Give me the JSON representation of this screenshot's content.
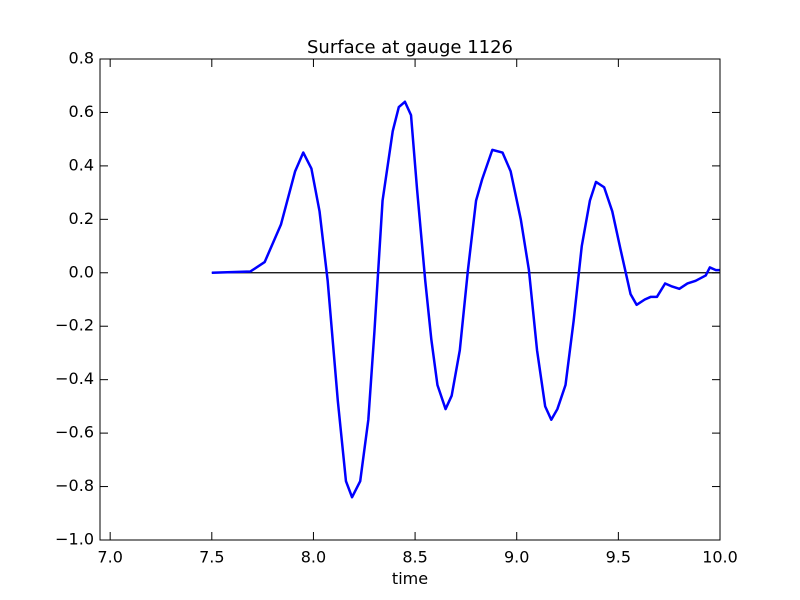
{
  "chart_data": {
    "type": "line",
    "title": "Surface at gauge 1126",
    "x_label": "time",
    "xlim": [
      6.95,
      10.0
    ],
    "ylim": [
      -1.0,
      0.8
    ],
    "xticks": [
      {
        "value": 7.0,
        "label": "7.0"
      },
      {
        "value": 7.5,
        "label": "7.5"
      },
      {
        "value": 8.0,
        "label": "8.0"
      },
      {
        "value": 8.5,
        "label": "8.5"
      },
      {
        "value": 9.0,
        "label": "9.0"
      },
      {
        "value": 9.5,
        "label": "9.5"
      },
      {
        "value": 10.0,
        "label": "10.0"
      }
    ],
    "yticks": [
      {
        "value": -1.0,
        "label": "−1.0"
      },
      {
        "value": -0.8,
        "label": "−0.8"
      },
      {
        "value": -0.6,
        "label": "−0.6"
      },
      {
        "value": -0.4,
        "label": "−0.4"
      },
      {
        "value": -0.2,
        "label": "−0.2"
      },
      {
        "value": 0.0,
        "label": "0.0"
      },
      {
        "value": 0.2,
        "label": "0.2"
      },
      {
        "value": 0.4,
        "label": "0.4"
      },
      {
        "value": 0.6,
        "label": "0.6"
      },
      {
        "value": 0.8,
        "label": "0.8"
      }
    ],
    "grid": false,
    "series": [
      {
        "color": "#0000ff",
        "width": 2.5,
        "x": [
          7.5,
          7.69,
          7.76,
          7.84,
          7.91,
          7.95,
          7.99,
          8.03,
          8.07,
          8.12,
          8.16,
          8.19,
          8.23,
          8.27,
          8.3,
          8.34,
          8.39,
          8.42,
          8.45,
          8.48,
          8.51,
          8.55,
          8.58,
          8.61,
          8.65,
          8.68,
          8.72,
          8.76,
          8.8,
          8.83,
          8.88,
          8.93,
          8.97,
          9.02,
          9.06,
          9.1,
          9.14,
          9.17,
          9.2,
          9.24,
          9.28,
          9.32,
          9.36,
          9.39,
          9.43,
          9.47,
          9.51,
          9.56,
          9.59,
          9.63,
          9.66,
          9.69,
          9.73,
          9.76,
          9.8,
          9.84,
          9.88,
          9.93,
          9.95,
          9.98,
          10.0
        ],
        "values": [
          0.0,
          0.005,
          0.04,
          0.18,
          0.38,
          0.45,
          0.39,
          0.23,
          -0.03,
          -0.48,
          -0.78,
          -0.84,
          -0.78,
          -0.55,
          -0.22,
          0.27,
          0.53,
          0.62,
          0.64,
          0.59,
          0.31,
          -0.03,
          -0.25,
          -0.42,
          -0.51,
          -0.46,
          -0.29,
          0.01,
          0.27,
          0.35,
          0.46,
          0.45,
          0.38,
          0.2,
          0.01,
          -0.29,
          -0.5,
          -0.55,
          -0.51,
          -0.42,
          -0.18,
          0.1,
          0.27,
          0.34,
          0.32,
          0.23,
          0.09,
          -0.08,
          -0.12,
          -0.1,
          -0.09,
          -0.09,
          -0.04,
          -0.05,
          -0.06,
          -0.04,
          -0.03,
          -0.01,
          0.02,
          0.01,
          0.01
        ]
      },
      {
        "color": "#000000",
        "width": 1.2,
        "x": [
          7.5,
          10.0
        ],
        "values": [
          0.0,
          0.0
        ]
      }
    ]
  }
}
